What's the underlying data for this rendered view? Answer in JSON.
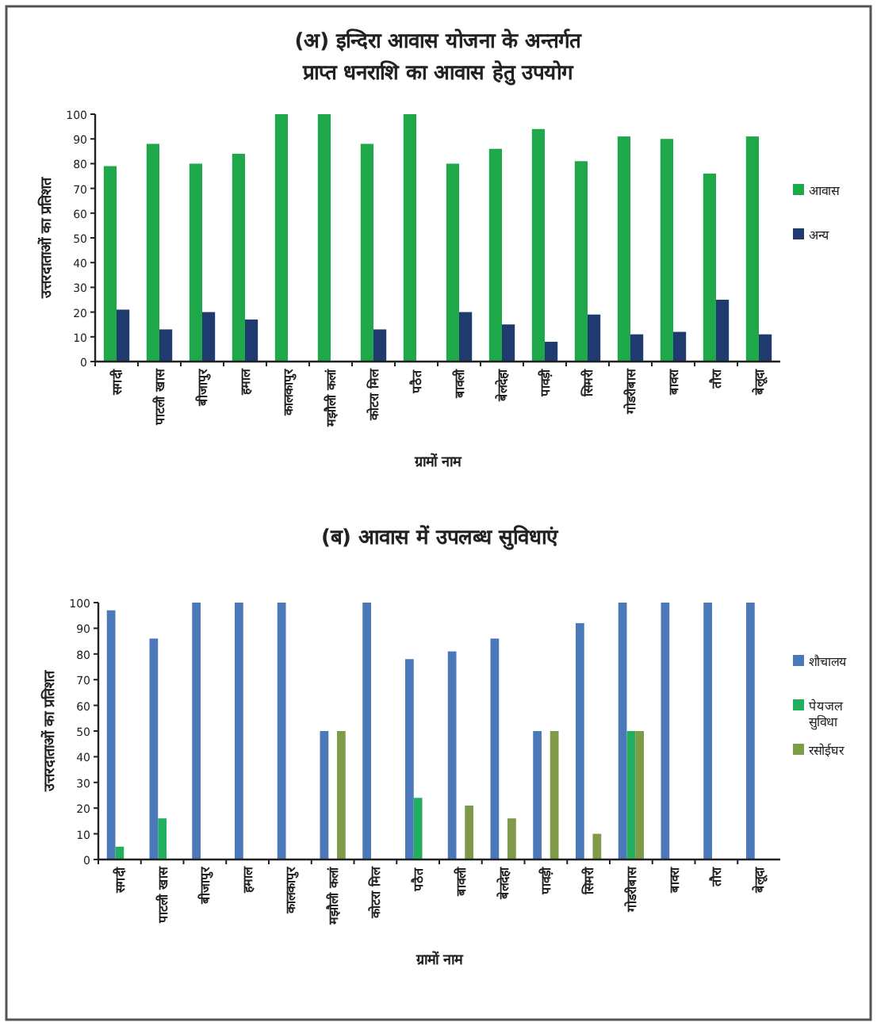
{
  "chart_data": [
    {
      "type": "bar",
      "title": "(अ) इन्दिरा आवास योजना के अन्तर्गत\nप्राप्त धनराशि का आवास हेतु उपयोग",
      "xlabel": "ग्रामों नाम",
      "ylabel": "उत्तरदाताओं का प्रतिशत",
      "categories": [
        "सगदी",
        "पाटली खास",
        "बीजापुर",
        "हमाल",
        "कालकापुर",
        "मझौली कलां",
        "कोटरा मिल",
        "पठैत",
        "बावली",
        "बेलदेहा",
        "पावड़ी",
        "सिमरी",
        "गोडरीबास",
        "बावरा",
        "तौरा",
        "बेलूदा"
      ],
      "ylim": [
        0,
        100
      ],
      "yticks": [
        0,
        10,
        20,
        30,
        40,
        50,
        60,
        70,
        80,
        90,
        100
      ],
      "legend": "right",
      "grid": false,
      "series": [
        {
          "name": "आवास",
          "color": "#1fa84a",
          "values": [
            79,
            88,
            80,
            84,
            100,
            100,
            88,
            100,
            80,
            86,
            94,
            81,
            91,
            90,
            76,
            91
          ]
        },
        {
          "name": "अन्य",
          "color": "#1f3a6e",
          "values": [
            21,
            13,
            20,
            17,
            0,
            0,
            13,
            0,
            20,
            15,
            8,
            19,
            11,
            12,
            25,
            11
          ]
        }
      ]
    },
    {
      "type": "bar",
      "title": "(ब) आवास में उपलब्ध सुविधाएं",
      "xlabel": "ग्रामों नाम",
      "ylabel": "उत्तरदाताओं का प्रतिशत",
      "categories": [
        "सगदी",
        "पाटली खास",
        "बीजापुर",
        "हमाल",
        "कालकापुर",
        "मझौली कलां",
        "कोटरा मिल",
        "पठैत",
        "बावली",
        "बेलदेहा",
        "पावड़ी",
        "सिमरी",
        "गोडरीबास",
        "बावरा",
        "तौरा",
        "बेलूदा"
      ],
      "ylim": [
        0,
        100
      ],
      "yticks": [
        0,
        10,
        20,
        30,
        40,
        50,
        60,
        70,
        80,
        90,
        100
      ],
      "legend": "right",
      "grid": false,
      "series": [
        {
          "name": "शौचालय",
          "color": "#4a78b8",
          "values": [
            97,
            86,
            100,
            100,
            100,
            50,
            100,
            78,
            81,
            86,
            50,
            92,
            100,
            100,
            100,
            100
          ]
        },
        {
          "name": "पेयजल सुविधा",
          "color": "#22b060",
          "values": [
            5,
            16,
            0,
            0,
            0,
            0,
            0,
            24,
            0,
            0,
            0,
            0,
            50,
            0,
            0,
            0
          ]
        },
        {
          "name": "रसोईघर",
          "color": "#7f9a48",
          "values": [
            0,
            0,
            0,
            0,
            0,
            50,
            0,
            0,
            21,
            16,
            50,
            10,
            50,
            0,
            0,
            0
          ]
        }
      ]
    }
  ]
}
